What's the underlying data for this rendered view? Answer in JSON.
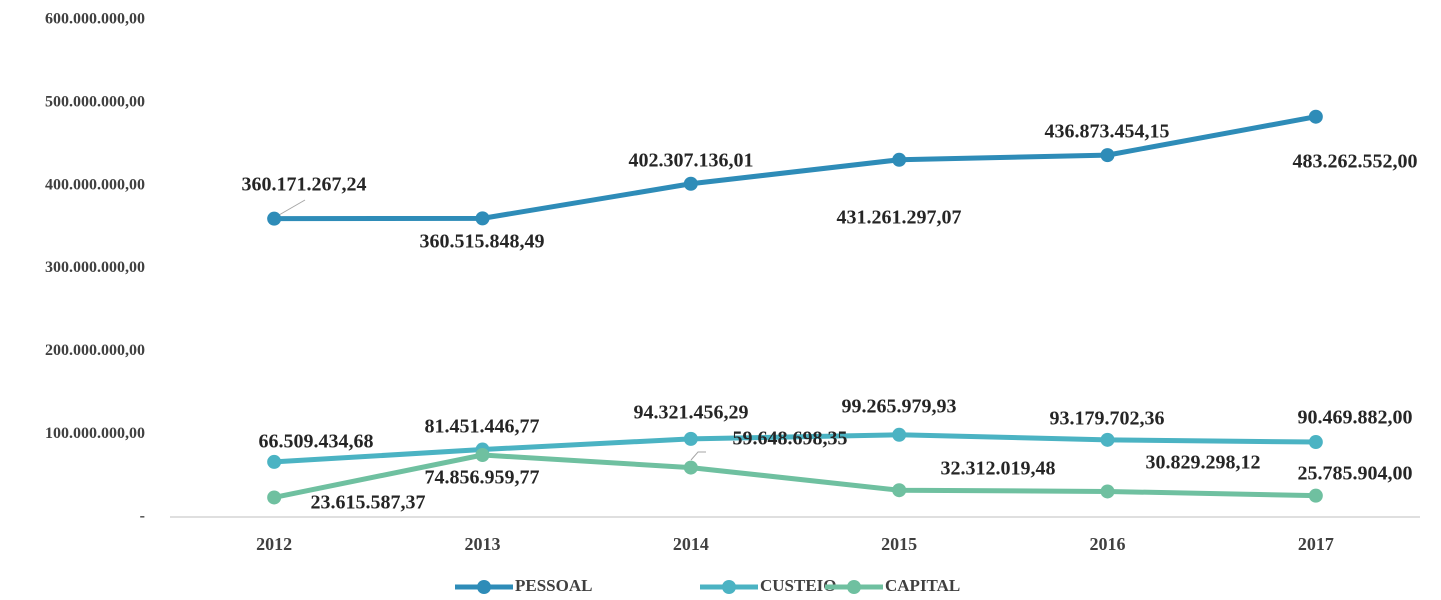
{
  "chart_data": {
    "type": "line",
    "categories": [
      "2012",
      "2013",
      "2014",
      "2015",
      "2016",
      "2017"
    ],
    "series": [
      {
        "name": "PESSOAL",
        "color": "#2e8cb8",
        "values": [
          360171267.24,
          360515848.49,
          402307136.01,
          431261297.07,
          436873454.15,
          483262552.0
        ],
        "value_labels": [
          "360.171.267,24",
          "360.515.848,49",
          "402.307.136,01",
          "431.261.297,07",
          "436.873.454,15",
          "483.262.552,00"
        ]
      },
      {
        "name": "CUSTEIO",
        "color": "#4bb3c3",
        "values": [
          66509434.68,
          81451446.77,
          94321456.29,
          99265979.93,
          93179702.36,
          90469882.0
        ],
        "value_labels": [
          "66.509.434,68",
          "81.451.446,77",
          "94.321.456,29",
          "99.265.979,93",
          "93.179.702,36",
          "90.469.882,00"
        ]
      },
      {
        "name": "CAPITAL",
        "color": "#6fc0a0",
        "values": [
          23615587.37,
          74856959.77,
          59648698.35,
          32312019.48,
          30829298.12,
          25785904.0
        ],
        "value_labels": [
          "23.615.587,37",
          "74.856.959,77",
          "59.648.698,35",
          "32.312.019,48",
          "30.829.298,12",
          "25.785.904,00"
        ]
      }
    ],
    "ylim": [
      0,
      600000000
    ],
    "yticks": [
      {
        "value": 0,
        "label": "-"
      },
      {
        "value": 100000000,
        "label": "100.000.000,00"
      },
      {
        "value": 200000000,
        "label": "200.000.000,00"
      },
      {
        "value": 300000000,
        "label": "300.000.000,00"
      },
      {
        "value": 400000000,
        "label": "400.000.000,00"
      },
      {
        "value": 500000000,
        "label": "500.000.000,00"
      },
      {
        "value": 600000000,
        "label": "600.000.000,00"
      }
    ],
    "grid": false,
    "legend": "bottom"
  }
}
